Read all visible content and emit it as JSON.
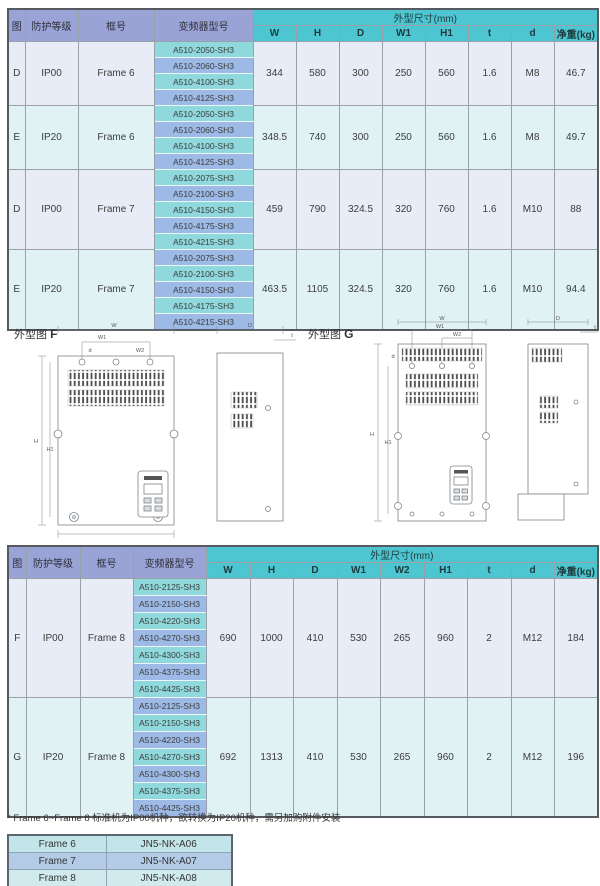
{
  "colors": {
    "teal_header": "#4dc6d1",
    "lavender_header": "#9aa3d5",
    "model_cyan": "#8fd8db",
    "model_blue": "#9db9e5",
    "row_ip00_bg": "#e7ecf7",
    "row_ip20_bg": "#e1f2f5",
    "outer_border": "#555a60",
    "inner_border": "#98a0a8"
  },
  "table1": {
    "col_headers": [
      "图",
      "防护等级",
      "框号",
      "变频器型号"
    ],
    "dim_group_header": "外型尺寸(mm)",
    "dim_headers": [
      "W",
      "H",
      "D",
      "W1",
      "H1",
      "t",
      "d",
      "净重(kg)"
    ],
    "groups": [
      {
        "fig": "D",
        "protection": "IP00",
        "frame": "Frame 6",
        "models": [
          "A510-2050-SH3",
          "A510-2060-SH3",
          "A510-4100-SH3",
          "A510-4125-SH3"
        ],
        "values": [
          "344",
          "580",
          "300",
          "250",
          "560",
          "1.6",
          "M8",
          "46.7"
        ]
      },
      {
        "fig": "E",
        "protection": "IP20",
        "frame": "Frame 6",
        "models": [
          "A510-2050-SH3",
          "A510-2060-SH3",
          "A510-4100-SH3",
          "A510-4125-SH3"
        ],
        "values": [
          "348.5",
          "740",
          "300",
          "250",
          "560",
          "1.6",
          "M8",
          "49.7"
        ]
      },
      {
        "fig": "D",
        "protection": "IP00",
        "frame": "Frame 7",
        "models": [
          "A510-2075-SH3",
          "A510-2100-SH3",
          "A510-4150-SH3",
          "A510-4175-SH3",
          "A510-4215-SH3"
        ],
        "values": [
          "459",
          "790",
          "324.5",
          "320",
          "760",
          "1.6",
          "M10",
          "88"
        ]
      },
      {
        "fig": "E",
        "protection": "IP20",
        "frame": "Frame 7",
        "models": [
          "A510-2075-SH3",
          "A510-2100-SH3",
          "A510-4150-SH3",
          "A510-4175-SH3",
          "A510-4215-SH3"
        ],
        "values": [
          "463.5",
          "1105",
          "324.5",
          "320",
          "760",
          "1.6",
          "M10",
          "94.4"
        ]
      }
    ]
  },
  "table2": {
    "col_headers": [
      "图",
      "防护等级",
      "框号",
      "变频器型号"
    ],
    "dim_group_header": "外型尺寸(mm)",
    "dim_headers": [
      "W",
      "H",
      "D",
      "W1",
      "W2",
      "H1",
      "t",
      "d",
      "净重(kg)"
    ],
    "groups": [
      {
        "fig": "F",
        "protection": "IP00",
        "frame": "Frame 8",
        "models": [
          "A510-2125-SH3",
          "A510-2150-SH3",
          "A510-4220-SH3",
          "A510-4270-SH3",
          "A510-4300-SH3",
          "A510-4375-SH3",
          "A510-4425-SH3"
        ],
        "values": [
          "690",
          "1000",
          "410",
          "530",
          "265",
          "960",
          "2",
          "M12",
          "184"
        ]
      },
      {
        "fig": "G",
        "protection": "IP20",
        "frame": "Frame 8",
        "models": [
          "A510-2125-SH3",
          "A510-2150-SH3",
          "A510-4220-SH3",
          "A510-4270-SH3",
          "A510-4300-SH3",
          "A510-4375-SH3",
          "A510-4425-SH3"
        ],
        "values": [
          "692",
          "1313",
          "410",
          "530",
          "265",
          "960",
          "2",
          "M12",
          "196"
        ]
      }
    ]
  },
  "drawings": {
    "f": {
      "prefix": "外型图",
      "letter": "F"
    },
    "g": {
      "prefix": "外型图",
      "letter": "G"
    },
    "labels": {
      "w": "W",
      "w1": "W1",
      "w2": "W2",
      "h": "H",
      "h1": "H1",
      "d": "D",
      "t": "t",
      "hole": "d"
    }
  },
  "footnote": {
    "text": "* Frame 6~Frame 8 标准机为IP00机种，欲转换为IP20机种，需另加购附件安装"
  },
  "accessory_table": {
    "rows": [
      {
        "frame": "Frame 6",
        "part": "JN5-NK-A06"
      },
      {
        "frame": "Frame 7",
        "part": "JN5-NK-A07"
      },
      {
        "frame": "Frame 8",
        "part": "JN5-NK-A08"
      }
    ]
  }
}
